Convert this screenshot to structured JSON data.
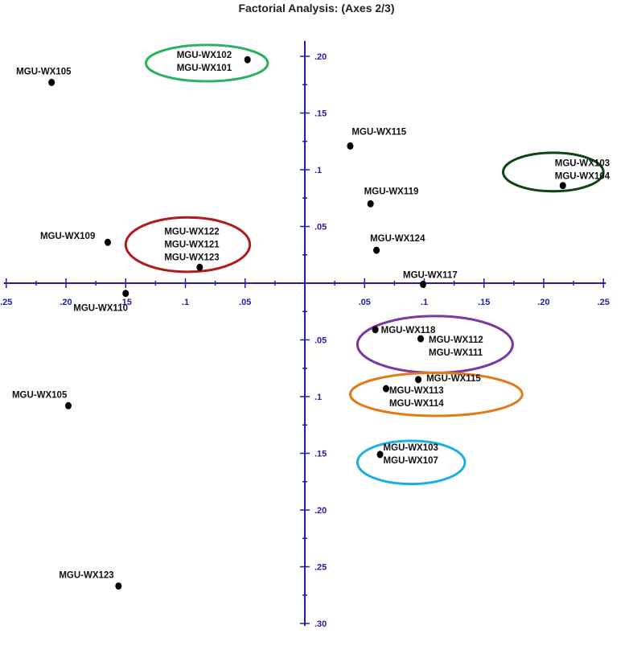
{
  "chart_data": {
    "type": "scatter",
    "title": "Factorial Analysis:  (Axes 2/3)",
    "xlabel": "",
    "ylabel": "",
    "xlim": [
      -0.25,
      0.25
    ],
    "ylim": [
      -0.3,
      0.21
    ],
    "grid": false,
    "axis_color": "#1f1fa8",
    "x_ticks": [
      {
        "value": -0.25,
        "label": ".25"
      },
      {
        "value": -0.2,
        "label": ".20"
      },
      {
        "value": -0.15,
        "label": ".15"
      },
      {
        "value": -0.1,
        "label": ".1"
      },
      {
        "value": -0.05,
        "label": ".05"
      },
      {
        "value": 0.05,
        "label": ".05"
      },
      {
        "value": 0.1,
        "label": ".1"
      },
      {
        "value": 0.15,
        "label": ".15"
      },
      {
        "value": 0.2,
        "label": ".20"
      },
      {
        "value": 0.25,
        "label": ".25"
      }
    ],
    "y_ticks": [
      {
        "value": 0.2,
        "label": ".20"
      },
      {
        "value": 0.15,
        "label": ".15"
      },
      {
        "value": 0.1,
        "label": ".1"
      },
      {
        "value": 0.05,
        "label": ".05"
      },
      {
        "value": -0.05,
        "label": ".05"
      },
      {
        "value": -0.1,
        "label": ".1"
      },
      {
        "value": -0.15,
        "label": ".15"
      },
      {
        "value": -0.2,
        "label": ".20"
      },
      {
        "value": -0.25,
        "label": ".25"
      },
      {
        "value": -0.3,
        "label": ".30"
      }
    ],
    "points": [
      {
        "labels": [
          "MGU-WX102",
          "MGU-WX101"
        ],
        "x": -0.048,
        "y": 0.197
      },
      {
        "labels": [
          "MGU-WX105"
        ],
        "x": -0.212,
        "y": 0.177
      },
      {
        "labels": [
          "MGU-WX115"
        ],
        "x": 0.038,
        "y": 0.121
      },
      {
        "labels": [
          "MGU-WX103",
          "MGU-WX104"
        ],
        "x": 0.216,
        "y": 0.086
      },
      {
        "labels": [
          "MGU-WX119"
        ],
        "x": 0.055,
        "y": 0.07
      },
      {
        "labels": [
          "MGU-WX109"
        ],
        "x": -0.165,
        "y": 0.036
      },
      {
        "labels": [
          "MGU-WX122",
          "MGU-WX121",
          "MGU-WX123"
        ],
        "x": -0.088,
        "y": 0.014
      },
      {
        "labels": [
          "MGU-WX124"
        ],
        "x": 0.06,
        "y": 0.029
      },
      {
        "labels": [
          "MGU-WX117"
        ],
        "x": 0.099,
        "y": -0.001
      },
      {
        "labels": [
          "MGU-WX110"
        ],
        "x": -0.15,
        "y": -0.009
      },
      {
        "labels": [
          "MGU-WX118"
        ],
        "x": 0.059,
        "y": -0.041
      },
      {
        "labels": [
          "MGU-WX112",
          "MGU-WX111"
        ],
        "x": 0.097,
        "y": -0.049
      },
      {
        "labels": [
          "MGU-WX115"
        ],
        "x": 0.095,
        "y": -0.085
      },
      {
        "labels": [
          "MGU-WX113",
          "MGU-WX114"
        ],
        "x": 0.068,
        "y": -0.093
      },
      {
        "labels": [
          "MGU-WX105"
        ],
        "x": -0.198,
        "y": -0.108
      },
      {
        "labels": [
          "MGU-WX103",
          "MGU-WX107"
        ],
        "x": 0.063,
        "y": -0.151
      },
      {
        "labels": [
          "MGU-WX123"
        ],
        "x": -0.156,
        "y": -0.267
      }
    ],
    "groups": [
      {
        "color": "#2ab35f",
        "cx": -0.082,
        "cy": 0.194,
        "rx": 0.051,
        "ry": 0.016
      },
      {
        "color": "#b01c1c",
        "cx": -0.098,
        "cy": 0.034,
        "rx": 0.052,
        "ry": 0.024
      },
      {
        "color": "#0c4512",
        "cx": 0.208,
        "cy": 0.098,
        "rx": 0.042,
        "ry": 0.017
      },
      {
        "color": "#7a38a3",
        "cx": 0.109,
        "cy": -0.054,
        "rx": 0.065,
        "ry": 0.025
      },
      {
        "color": "#e27a18",
        "cx": 0.11,
        "cy": -0.098,
        "rx": 0.072,
        "ry": 0.019
      },
      {
        "color": "#1ab0e4",
        "cx": 0.089,
        "cy": -0.158,
        "rx": 0.045,
        "ry": 0.019
      }
    ]
  }
}
